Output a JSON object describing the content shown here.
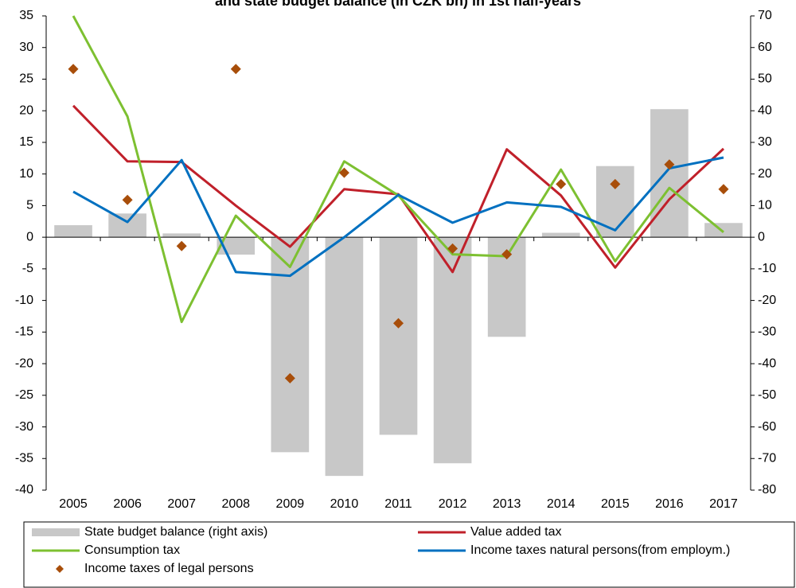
{
  "chart_data": {
    "type": "combo",
    "title": "and state budget balance (in CZK bn) in 1st half-years",
    "categories": [
      "2005",
      "2006",
      "2007",
      "2008",
      "2009",
      "2010",
      "2011",
      "2012",
      "2013",
      "2014",
      "2015",
      "2016",
      "2017"
    ],
    "series": [
      {
        "name": "State budget balance (right axis)",
        "kind": "bar",
        "axis": "y2",
        "color": "#c8c8c8",
        "values": [
          3.8,
          7.5,
          1.2,
          -5.5,
          -68,
          -75.5,
          -62.5,
          -71.5,
          -31.5,
          1.4,
          22.5,
          40.5,
          4.5
        ]
      },
      {
        "name": "Value added tax",
        "kind": "line",
        "color": "#c0202a",
        "values": [
          20.8,
          12.0,
          11.9,
          5.0,
          -1.5,
          7.6,
          6.8,
          -5.5,
          13.9,
          6.6,
          -4.8,
          6.0,
          14.0
        ]
      },
      {
        "name": "Consumption tax",
        "kind": "line",
        "color": "#7dc031",
        "values": [
          35.0,
          19.1,
          -13.4,
          3.4,
          -4.7,
          12.0,
          6.6,
          -2.7,
          -3.0,
          10.7,
          -3.8,
          7.8,
          0.8
        ]
      },
      {
        "name": "Income taxes natural persons(from employm.)",
        "kind": "line",
        "color": "#0070c0",
        "values": [
          7.2,
          2.4,
          12.2,
          -5.5,
          -6.1,
          0.0,
          6.7,
          2.3,
          5.5,
          4.8,
          1.1,
          10.9,
          12.6
        ]
      },
      {
        "name": "Income taxes of legal persons",
        "kind": "marker",
        "color": "#a84e0a",
        "values": [
          26.6,
          5.9,
          -1.4,
          26.6,
          -22.3,
          10.2,
          -13.6,
          -1.8,
          -2.7,
          8.4,
          8.4,
          11.5,
          7.6
        ]
      }
    ],
    "ylim": [
      -40,
      35
    ],
    "yticks": [
      -40,
      -35,
      -30,
      -25,
      -20,
      -15,
      -10,
      -5,
      0,
      5,
      10,
      15,
      20,
      25,
      30,
      35
    ],
    "y2lim": [
      -80,
      70
    ],
    "y2ticks": [
      -80,
      -70,
      -60,
      -50,
      -40,
      -30,
      -20,
      -10,
      0,
      10,
      20,
      30,
      40,
      50,
      60,
      70
    ]
  }
}
